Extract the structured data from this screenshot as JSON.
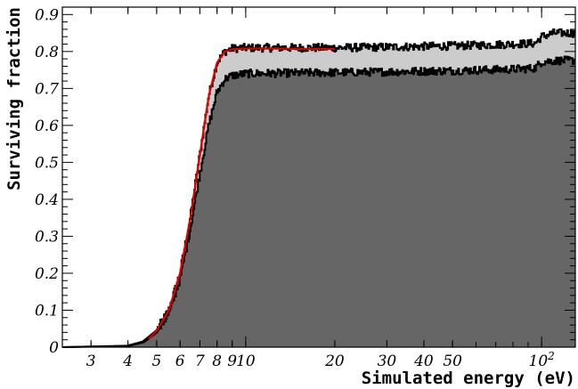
{
  "chart_data": {
    "type": "area",
    "title": "",
    "xlabel": "Simulated energy (eV)",
    "ylabel": "Surviving fraction",
    "xscale": "log",
    "xlim": [
      2.4,
      130
    ],
    "ylim": [
      0,
      0.92
    ],
    "xticks": [
      {
        "value": 3,
        "label": "3"
      },
      {
        "value": 4,
        "label": "4"
      },
      {
        "value": 5,
        "label": "5"
      },
      {
        "value": 6,
        "label": "6"
      },
      {
        "value": 7,
        "label": "7"
      },
      {
        "value": 8,
        "label": "8"
      },
      {
        "value": 9,
        "label": "9"
      },
      {
        "value": 10,
        "label": "10"
      },
      {
        "value": 20,
        "label": "20"
      },
      {
        "value": 30,
        "label": "30"
      },
      {
        "value": 40,
        "label": "40"
      },
      {
        "value": 50,
        "label": "50"
      },
      {
        "value": 100,
        "label": "10",
        "sup": "2"
      }
    ],
    "yticks": [
      {
        "value": 0,
        "label": "0"
      },
      {
        "value": 0.1,
        "label": "0.1"
      },
      {
        "value": 0.2,
        "label": "0.2"
      },
      {
        "value": 0.3,
        "label": "0.3"
      },
      {
        "value": 0.4,
        "label": "0.4"
      },
      {
        "value": 0.5,
        "label": "0.5"
      },
      {
        "value": 0.6,
        "label": "0.6"
      },
      {
        "value": 0.7,
        "label": "0.7"
      },
      {
        "value": 0.8,
        "label": "0.8"
      },
      {
        "value": 0.9,
        "label": "0.9"
      }
    ],
    "grid": false,
    "series": [
      {
        "color": "#cccccc",
        "x": [
          2.4,
          4,
          4.5,
          5,
          5.5,
          6,
          6.5,
          7,
          7.5,
          8,
          8.5,
          9,
          10,
          15,
          20,
          30,
          50,
          80,
          95,
          100,
          110,
          130
        ],
        "values": [
          0.0,
          0.004,
          0.015,
          0.045,
          0.1,
          0.2,
          0.35,
          0.52,
          0.68,
          0.77,
          0.8,
          0.808,
          0.81,
          0.81,
          0.81,
          0.812,
          0.815,
          0.82,
          0.822,
          0.84,
          0.85,
          0.85
        ]
      },
      {
        "color": "#666666",
        "x": [
          2.4,
          4,
          4.5,
          5,
          5.5,
          6,
          6.5,
          7,
          7.5,
          8,
          8.5,
          9,
          10,
          15,
          20,
          30,
          50,
          80,
          95,
          100,
          110,
          130
        ],
        "values": [
          0.0,
          0.003,
          0.013,
          0.04,
          0.09,
          0.185,
          0.32,
          0.47,
          0.6,
          0.69,
          0.725,
          0.735,
          0.74,
          0.742,
          0.743,
          0.745,
          0.748,
          0.752,
          0.755,
          0.772,
          0.775,
          0.776
        ]
      },
      {
        "color": "#dd0000",
        "x": [
          4.7,
          5,
          5.5,
          6,
          6.5,
          7,
          7.5,
          8,
          8.5,
          9,
          10,
          12,
          15,
          20
        ],
        "values": [
          0.022,
          0.045,
          0.1,
          0.2,
          0.35,
          0.52,
          0.68,
          0.77,
          0.8,
          0.806,
          0.808,
          0.808,
          0.807,
          0.807
        ]
      }
    ]
  }
}
